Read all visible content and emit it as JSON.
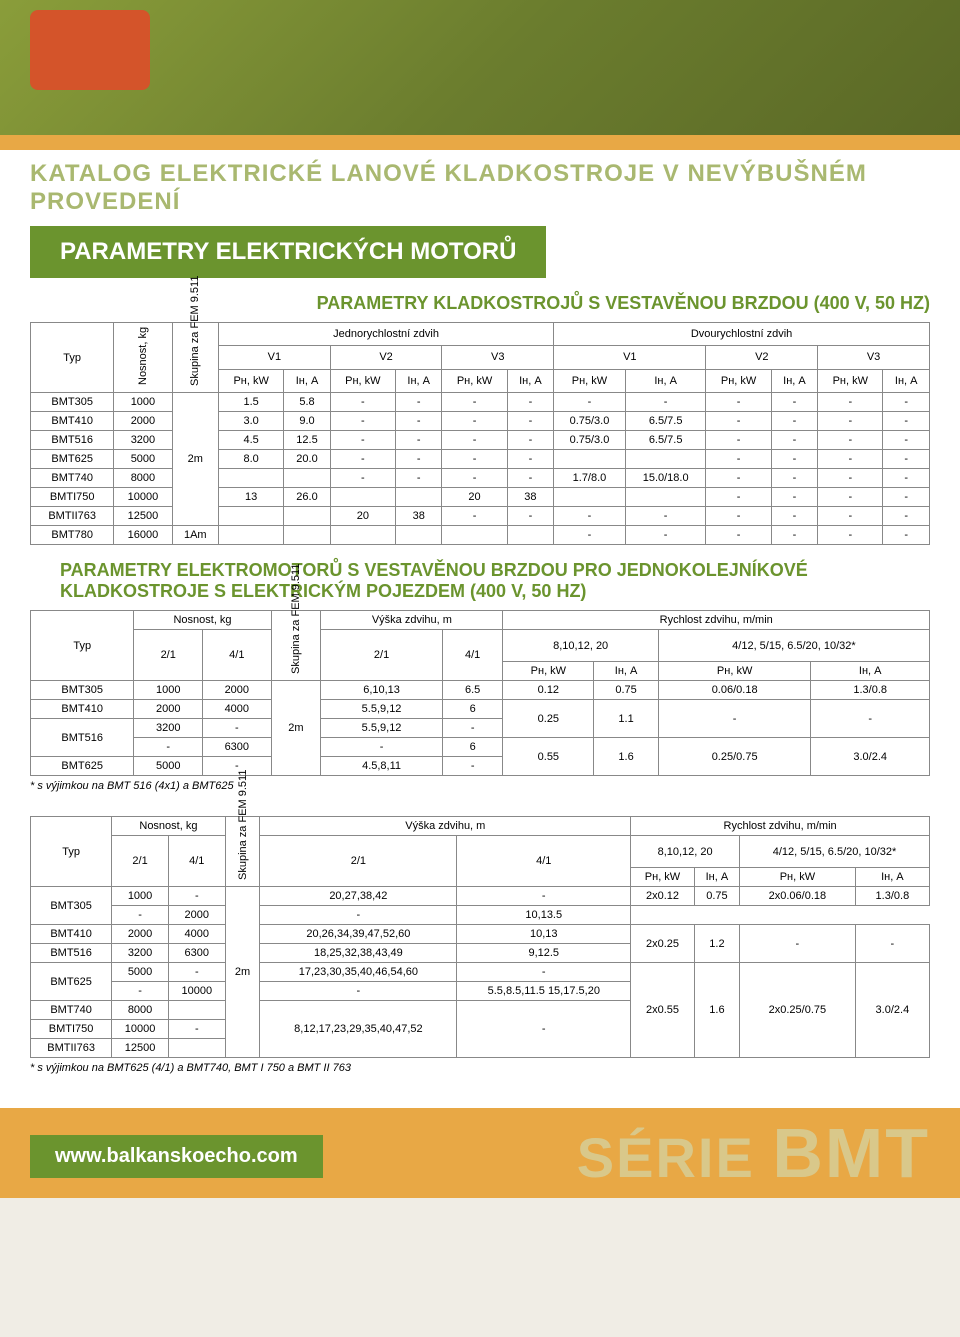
{
  "katalog_title": "KATALOG ELEKTRICKÉ LANOVÉ KLADKOSTROJE V NEVÝBUŠNÉM PROVEDENÍ",
  "main_title": "PARAMETRY ELEKTRICKÝCH MOTORŮ",
  "subtitle1": "PARAMETRY KLADKOSTROJŮ S VESTAVĚNOU BRZDOU (400 V, 50 HZ)",
  "subtitle2": "PARAMETRY ELEKTROMOTORŮ S VESTAVĚNOU BRZDOU PRO JEDNOKOLEJNÍKOVÉ KLADKOSTROJE S ELEKTRICKÝM POJEZDEM (400 V, 50 HZ)",
  "t1": {
    "h": {
      "typ": "Typ",
      "nosnost": "Nosnost, kg",
      "skupina": "Skupina za FEM 9.511",
      "jedno": "Jednorychlostní zdvih",
      "dvou": "Dvourychlostní zdvih",
      "v1": "V1",
      "v2": "V2",
      "v3": "V3",
      "pn": "Pн, kW",
      "in": "Iн, A"
    },
    "rows": [
      {
        "typ": "BMT305",
        "nos": "1000",
        "sk": "",
        "v": [
          "1.5",
          "5.8",
          "-",
          "-",
          "-",
          "-",
          "-",
          "-",
          "-",
          "-",
          "-",
          "-"
        ]
      },
      {
        "typ": "BMT410",
        "nos": "2000",
        "sk": "",
        "v": [
          "3.0",
          "9.0",
          "-",
          "-",
          "-",
          "-",
          "0.75/3.0",
          "6.5/7.5",
          "-",
          "-",
          "-",
          "-"
        ]
      },
      {
        "typ": "BMT516",
        "nos": "3200",
        "sk": "",
        "v": [
          "4.5",
          "12.5",
          "-",
          "-",
          "-",
          "-",
          "0.75/3.0",
          "6.5/7.5",
          "-",
          "-",
          "-",
          "-"
        ]
      },
      {
        "typ": "BMT625",
        "nos": "5000",
        "sk": "2m",
        "v": [
          "8.0",
          "20.0",
          "-",
          "-",
          "-",
          "-",
          "",
          "",
          "-",
          "-",
          "-",
          "-"
        ]
      },
      {
        "typ": "BMT740",
        "nos": "8000",
        "sk": "",
        "v": [
          "",
          "",
          "-",
          "-",
          "-",
          "-",
          "1.7/8.0",
          "15.0/18.0",
          "-",
          "-",
          "-",
          "-"
        ]
      },
      {
        "typ": "BMTI750",
        "nos": "10000",
        "sk": "",
        "v": [
          "13",
          "26.0",
          "",
          "",
          "20",
          "38",
          "",
          "",
          "-",
          "-",
          "-",
          "-"
        ]
      },
      {
        "typ": "BMTII763",
        "nos": "12500",
        "sk": "",
        "v": [
          "",
          "",
          "20",
          "38",
          "-",
          "-",
          "-",
          "-",
          "-",
          "-",
          "-",
          "-"
        ]
      },
      {
        "typ": "BMT780",
        "nos": "16000",
        "sk": "1Am",
        "v": [
          "",
          "",
          "",
          "",
          "",
          "",
          "-",
          "-",
          "-",
          "-",
          "-",
          "-"
        ]
      }
    ]
  },
  "t2": {
    "h": {
      "typ": "Typ",
      "nosnost": "Nosnost, kg",
      "skupina": "Skupina za FEM 9.511",
      "vyska": "Výška zdvihu, m",
      "rychlost": "Rychlost zdvihu, m/min",
      "r1": "8,10,12, 20",
      "r2": "4/12, 5/15, 6.5/20, 10/32*",
      "c21": "2/1",
      "c41": "4/1",
      "pn": "Pн, kW",
      "in": "Iн, A"
    },
    "rows": [
      {
        "typ": "BMT305",
        "n21": "1000",
        "n41": "2000",
        "sk": "",
        "v21": "6,10,13",
        "v41": "6.5",
        "p1": "0.12",
        "i1": "0.75",
        "p2": "0.06/0.18",
        "i2": "1.3/0.8"
      },
      {
        "typ": "BMT410",
        "n21": "2000",
        "n41": "4000",
        "sk": "",
        "v21": "5.5,9,12",
        "v41": "6",
        "p1": "0.25",
        "i1": "1.1",
        "p2": "-",
        "i2": "-",
        "rs1": 2
      },
      {
        "typ": "BMT516",
        "n21": "3200",
        "n41": "-",
        "sk": "2m",
        "v21": "5.5,9,12",
        "v41": "-",
        "rs0": 2
      },
      {
        "n21": "-",
        "n41": "6300",
        "v21": "-",
        "v41": "6",
        "p1": "0.55",
        "i1": "1.6",
        "p2": "0.25/0.75",
        "i2": "3.0/2.4",
        "rs1": 2
      },
      {
        "typ": "BMT625",
        "n21": "5000",
        "n41": "-",
        "sk": "",
        "v21": "4.5,8,11",
        "v41": "-"
      }
    ],
    "footnote": "* s výjimkou na BMT 516 (4x1) a BMT625"
  },
  "t3": {
    "h": {
      "typ": "Typ",
      "nosnost": "Nosnost, kg",
      "skupina": "Skupina za FEM 9.511",
      "vyska": "Výška zdvihu, m",
      "rychlost": "Rychlost zdvihu, m/min",
      "r1": "8,10,12, 20",
      "r2": "4/12, 5/15, 6.5/20, 10/32*",
      "c21": "2/1",
      "c41": "4/1",
      "pn": "Pн, kW",
      "in": "Iн, A"
    },
    "rows": [
      {
        "typ": "BMT305",
        "n21": "1000",
        "n41": "-",
        "v21": "20,27,38,42",
        "v41": "-",
        "p1": "2x0.12",
        "i1": "0.75",
        "p2": "2x0.06/0.18",
        "i2": "1.3/0.8",
        "rs0": 2
      },
      {
        "n21": "-",
        "n41": "2000",
        "v21": "-",
        "v41": "10,13.5"
      },
      {
        "typ": "BMT410",
        "n21": "2000",
        "n41": "4000",
        "v21": "20,26,34,39,47,52,60",
        "v41": "10,13",
        "p1": "2x0.25",
        "i1": "1.2",
        "p2": "-",
        "i2": "-",
        "rs1": 2
      },
      {
        "typ": "BMT516",
        "n21": "3200",
        "n41": "6300",
        "sk": "2m",
        "v21": "18,25,32,38,43,49",
        "v41": "9,12.5"
      },
      {
        "typ": "BMT625",
        "n21": "5000",
        "n41": "-",
        "v21": "17,23,30,35,40,46,54,60",
        "v41": "-",
        "rs0": 2,
        "p1": "2x0.55",
        "i1": "1.6",
        "p2": "2x0.25/0.75",
        "i2": "3.0/2.4",
        "rs1": 5
      },
      {
        "n21": "-",
        "n41": "10000",
        "v21": "-",
        "v41": "5.5,8.5,11.5 15,17.5,20"
      },
      {
        "typ": "BMT740",
        "n21": "8000",
        "n41": "",
        "v21": "8,12,17,23,29,35,40,47,52",
        "v41": "-",
        "v21rs": 3,
        "v41rs": 3
      },
      {
        "typ": "BMTI750",
        "n21": "10000",
        "n41": "-"
      },
      {
        "typ": "BMTII763",
        "n21": "12500",
        "n41": ""
      }
    ],
    "footnote": "* s výjimkou na BMT625 (4/1) a BMT740, BMT I 750 a BMT II 763"
  },
  "footer": {
    "url": "www.balkanskoecho.com",
    "serie": "SÉRIE",
    "bmt": "BMT"
  }
}
